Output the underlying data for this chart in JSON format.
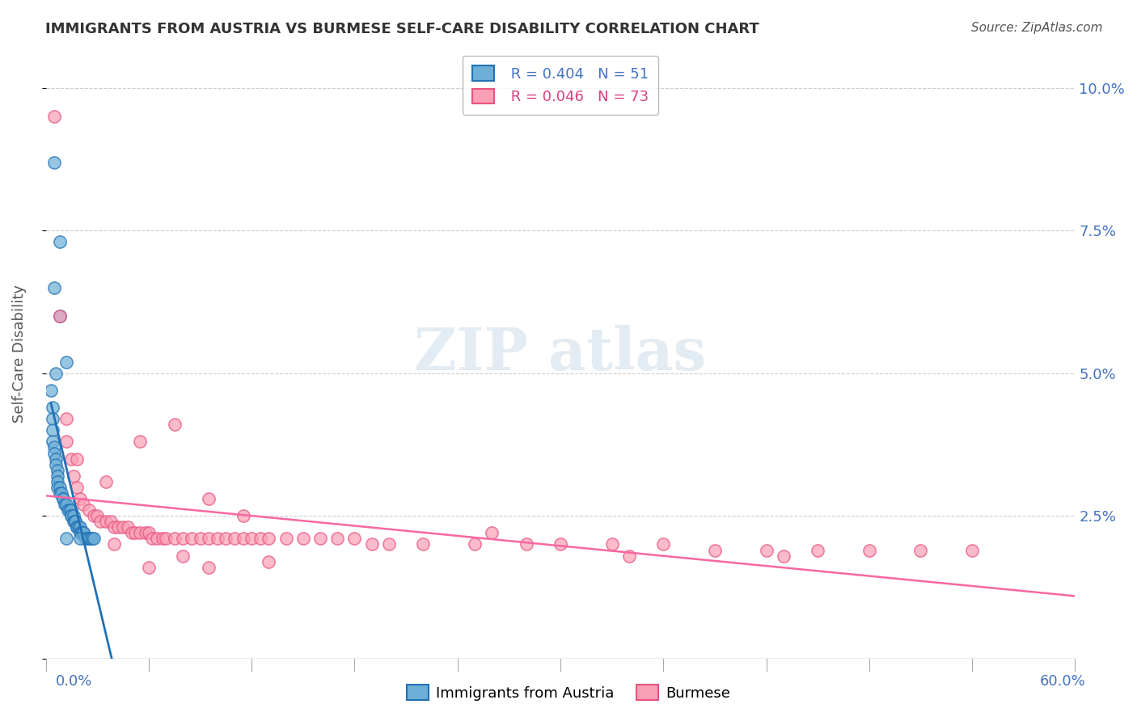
{
  "title": "IMMIGRANTS FROM AUSTRIA VS BURMESE SELF-CARE DISABILITY CORRELATION CHART",
  "source": "Source: ZipAtlas.com",
  "ylabel": "Self-Care Disability",
  "yticks": [
    0.0,
    0.025,
    0.05,
    0.075,
    0.1
  ],
  "ytick_labels": [
    "",
    "2.5%",
    "5.0%",
    "7.5%",
    "10.0%"
  ],
  "xlim": [
    0.0,
    0.6
  ],
  "ylim": [
    0.0,
    0.107
  ],
  "legend_blue_r": "R = 0.404",
  "legend_blue_n": "N = 51",
  "legend_pink_r": "R = 0.046",
  "legend_pink_n": "N = 73",
  "blue_color": "#6baed6",
  "pink_color": "#fa9fb5",
  "blue_line_color": "#2171b5",
  "pink_line_color": "#f768a1",
  "blue_scatter_x": [
    0.005,
    0.008,
    0.005,
    0.008,
    0.012,
    0.006,
    0.003,
    0.004,
    0.004,
    0.004,
    0.004,
    0.005,
    0.005,
    0.006,
    0.006,
    0.007,
    0.007,
    0.007,
    0.007,
    0.008,
    0.008,
    0.009,
    0.01,
    0.01,
    0.011,
    0.012,
    0.013,
    0.014,
    0.015,
    0.015,
    0.015,
    0.016,
    0.016,
    0.017,
    0.017,
    0.018,
    0.018,
    0.019,
    0.02,
    0.02,
    0.021,
    0.022,
    0.022,
    0.023,
    0.024,
    0.025,
    0.026,
    0.027,
    0.028,
    0.012,
    0.02
  ],
  "blue_scatter_y": [
    0.087,
    0.073,
    0.065,
    0.06,
    0.052,
    0.05,
    0.047,
    0.044,
    0.042,
    0.04,
    0.038,
    0.037,
    0.036,
    0.035,
    0.034,
    0.033,
    0.032,
    0.031,
    0.03,
    0.03,
    0.029,
    0.029,
    0.028,
    0.028,
    0.027,
    0.027,
    0.026,
    0.026,
    0.026,
    0.025,
    0.025,
    0.025,
    0.024,
    0.024,
    0.024,
    0.023,
    0.023,
    0.023,
    0.023,
    0.022,
    0.022,
    0.022,
    0.022,
    0.021,
    0.021,
    0.021,
    0.021,
    0.021,
    0.021,
    0.021,
    0.021
  ],
  "pink_scatter_x": [
    0.005,
    0.008,
    0.012,
    0.012,
    0.015,
    0.016,
    0.018,
    0.02,
    0.022,
    0.025,
    0.028,
    0.03,
    0.032,
    0.035,
    0.038,
    0.04,
    0.042,
    0.045,
    0.048,
    0.05,
    0.052,
    0.055,
    0.058,
    0.06,
    0.062,
    0.065,
    0.068,
    0.07,
    0.075,
    0.08,
    0.085,
    0.09,
    0.095,
    0.1,
    0.105,
    0.11,
    0.115,
    0.12,
    0.125,
    0.13,
    0.14,
    0.15,
    0.16,
    0.17,
    0.18,
    0.19,
    0.2,
    0.22,
    0.25,
    0.28,
    0.3,
    0.33,
    0.36,
    0.39,
    0.42,
    0.45,
    0.48,
    0.51,
    0.54,
    0.018,
    0.035,
    0.055,
    0.075,
    0.095,
    0.115,
    0.04,
    0.08,
    0.13,
    0.06,
    0.095,
    0.26,
    0.34,
    0.43
  ],
  "pink_scatter_y": [
    0.095,
    0.06,
    0.042,
    0.038,
    0.035,
    0.032,
    0.03,
    0.028,
    0.027,
    0.026,
    0.025,
    0.025,
    0.024,
    0.024,
    0.024,
    0.023,
    0.023,
    0.023,
    0.023,
    0.022,
    0.022,
    0.022,
    0.022,
    0.022,
    0.021,
    0.021,
    0.021,
    0.021,
    0.021,
    0.021,
    0.021,
    0.021,
    0.021,
    0.021,
    0.021,
    0.021,
    0.021,
    0.021,
    0.021,
    0.021,
    0.021,
    0.021,
    0.021,
    0.021,
    0.021,
    0.02,
    0.02,
    0.02,
    0.02,
    0.02,
    0.02,
    0.02,
    0.02,
    0.019,
    0.019,
    0.019,
    0.019,
    0.019,
    0.019,
    0.035,
    0.031,
    0.038,
    0.041,
    0.028,
    0.025,
    0.02,
    0.018,
    0.017,
    0.016,
    0.016,
    0.022,
    0.018,
    0.018
  ],
  "background_color": "#ffffff",
  "grid_color": "#cccccc",
  "text_blue": "#4472c4",
  "text_pink": "#d44080",
  "watermark_color": "#c8d8e8"
}
